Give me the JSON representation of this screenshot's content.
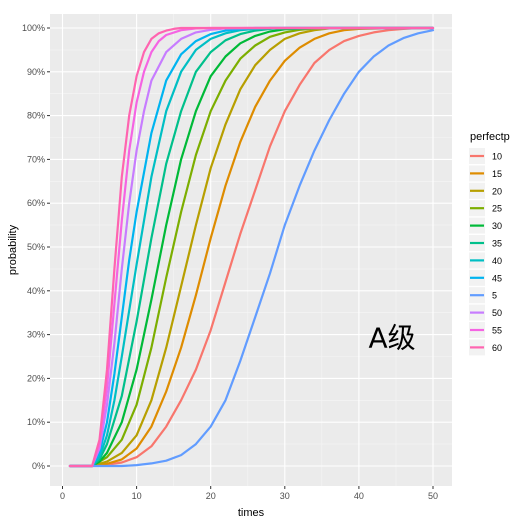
{
  "chart_data": {
    "type": "line",
    "title": "",
    "xlabel": "times",
    "ylabel": "probability",
    "xlim": [
      0,
      52
    ],
    "ylim": [
      0,
      1.0
    ],
    "x_ticks": [
      0,
      10,
      20,
      30,
      40,
      50
    ],
    "x_tick_labels": [
      "0",
      "10",
      "20",
      "30",
      "40",
      "50"
    ],
    "y_ticks": [
      0,
      0.1,
      0.2,
      0.3,
      0.4,
      0.5,
      0.6,
      0.7,
      0.8,
      0.9,
      1.0
    ],
    "y_tick_labels": [
      "0%",
      "10%",
      "20%",
      "30%",
      "40%",
      "50%",
      "60%",
      "70%",
      "80%",
      "90%",
      "100%"
    ],
    "grid": true,
    "legend": {
      "title": "perfectp",
      "position": "right"
    },
    "annotation": "A级",
    "series": [
      {
        "name": "10",
        "color": "#F8766D",
        "x": [
          1,
          4,
          6,
          8,
          10,
          12,
          14,
          16,
          18,
          20,
          22,
          24,
          26,
          28,
          30,
          32,
          34,
          36,
          38,
          40,
          42,
          44,
          46,
          48,
          50
        ],
        "y": [
          0,
          0,
          0.003,
          0.008,
          0.02,
          0.045,
          0.09,
          0.15,
          0.22,
          0.31,
          0.42,
          0.53,
          0.63,
          0.73,
          0.81,
          0.87,
          0.92,
          0.95,
          0.97,
          0.982,
          0.99,
          0.995,
          0.998,
          1.0,
          1.0
        ]
      },
      {
        "name": "15",
        "color": "#DE8C00",
        "x": [
          1,
          4,
          6,
          8,
          10,
          12,
          14,
          16,
          18,
          20,
          22,
          24,
          26,
          28,
          30,
          32,
          34,
          36,
          38,
          40,
          45,
          50
        ],
        "y": [
          0,
          0,
          0.005,
          0.015,
          0.04,
          0.09,
          0.17,
          0.27,
          0.39,
          0.52,
          0.64,
          0.74,
          0.82,
          0.88,
          0.925,
          0.955,
          0.975,
          0.988,
          0.995,
          0.998,
          1.0,
          1.0
        ]
      },
      {
        "name": "20",
        "color": "#B79F00",
        "x": [
          1,
          4,
          6,
          8,
          10,
          12,
          14,
          16,
          18,
          20,
          22,
          24,
          26,
          28,
          30,
          32,
          34,
          36,
          40,
          45,
          50
        ],
        "y": [
          0,
          0,
          0.01,
          0.03,
          0.07,
          0.15,
          0.27,
          0.41,
          0.55,
          0.68,
          0.78,
          0.86,
          0.915,
          0.95,
          0.975,
          0.988,
          0.995,
          0.999,
          1.0,
          1.0,
          1.0
        ]
      },
      {
        "name": "25",
        "color": "#7CAE00",
        "x": [
          1,
          4,
          6,
          8,
          10,
          12,
          14,
          16,
          18,
          20,
          22,
          24,
          26,
          28,
          30,
          32,
          35,
          40,
          50
        ],
        "y": [
          0,
          0,
          0.02,
          0.06,
          0.14,
          0.27,
          0.43,
          0.58,
          0.71,
          0.81,
          0.88,
          0.93,
          0.96,
          0.98,
          0.99,
          0.996,
          1.0,
          1.0,
          1.0
        ]
      },
      {
        "name": "30",
        "color": "#00BA38",
        "x": [
          1,
          4,
          5,
          6,
          8,
          10,
          12,
          14,
          16,
          18,
          20,
          22,
          24,
          26,
          28,
          30,
          35,
          40,
          50
        ],
        "y": [
          0,
          0,
          0.01,
          0.03,
          0.1,
          0.22,
          0.38,
          0.55,
          0.7,
          0.81,
          0.89,
          0.935,
          0.965,
          0.982,
          0.992,
          0.997,
          1.0,
          1.0,
          1.0
        ]
      },
      {
        "name": "35",
        "color": "#00C08B",
        "x": [
          1,
          4,
          5,
          6,
          8,
          10,
          12,
          14,
          16,
          18,
          20,
          22,
          24,
          26,
          28,
          30,
          35,
          40,
          50
        ],
        "y": [
          0,
          0,
          0.015,
          0.05,
          0.16,
          0.33,
          0.52,
          0.69,
          0.81,
          0.9,
          0.945,
          0.972,
          0.986,
          0.994,
          0.998,
          1.0,
          1.0,
          1.0,
          1.0
        ]
      },
      {
        "name": "40",
        "color": "#00BFC4",
        "x": [
          1,
          4,
          5,
          6,
          7,
          8,
          10,
          12,
          14,
          16,
          18,
          20,
          22,
          24,
          26,
          28,
          30,
          40,
          50
        ],
        "y": [
          0,
          0,
          0.02,
          0.07,
          0.15,
          0.25,
          0.46,
          0.66,
          0.81,
          0.9,
          0.95,
          0.975,
          0.988,
          0.995,
          0.998,
          1.0,
          1.0,
          1.0,
          1.0
        ]
      },
      {
        "name": "45",
        "color": "#00B4F0",
        "x": [
          1,
          4,
          5,
          6,
          7,
          8,
          9,
          10,
          12,
          14,
          16,
          18,
          20,
          22,
          24,
          26,
          30,
          40,
          50
        ],
        "y": [
          0,
          0,
          0.03,
          0.1,
          0.21,
          0.34,
          0.47,
          0.58,
          0.76,
          0.88,
          0.94,
          0.97,
          0.986,
          0.994,
          0.998,
          1.0,
          1.0,
          1.0,
          1.0
        ]
      },
      {
        "name": "5",
        "color": "#619CFF",
        "x": [
          1,
          8,
          10,
          12,
          14,
          16,
          18,
          20,
          22,
          24,
          26,
          28,
          30,
          32,
          34,
          36,
          38,
          40,
          42,
          44,
          46,
          48,
          50
        ],
        "y": [
          0,
          0,
          0.002,
          0.006,
          0.012,
          0.025,
          0.05,
          0.09,
          0.15,
          0.24,
          0.34,
          0.44,
          0.55,
          0.64,
          0.72,
          0.79,
          0.85,
          0.9,
          0.935,
          0.96,
          0.977,
          0.988,
          0.995
        ]
      },
      {
        "name": "50",
        "color": "#C77CFF",
        "x": [
          1,
          4,
          5,
          6,
          7,
          8,
          9,
          10,
          11,
          12,
          14,
          16,
          18,
          20,
          22,
          25,
          30,
          40,
          50
        ],
        "y": [
          0,
          0,
          0.04,
          0.14,
          0.28,
          0.45,
          0.6,
          0.72,
          0.81,
          0.88,
          0.945,
          0.975,
          0.99,
          0.996,
          0.999,
          1.0,
          1.0,
          1.0,
          1.0
        ]
      },
      {
        "name": "55",
        "color": "#F564E3",
        "x": [
          1,
          4,
          5,
          6,
          7,
          8,
          9,
          10,
          11,
          12,
          13,
          14,
          16,
          18,
          20,
          25,
          30,
          40,
          50
        ],
        "y": [
          0,
          0,
          0.05,
          0.18,
          0.37,
          0.56,
          0.72,
          0.83,
          0.9,
          0.945,
          0.97,
          0.984,
          0.995,
          0.999,
          1.0,
          1.0,
          1.0,
          1.0,
          1.0
        ]
      },
      {
        "name": "60",
        "color": "#FF64B0",
        "x": [
          1,
          4,
          5,
          6,
          7,
          8,
          9,
          10,
          11,
          12,
          13,
          14,
          15,
          16,
          18,
          20,
          30,
          40,
          50
        ],
        "y": [
          0,
          0,
          0.06,
          0.22,
          0.45,
          0.66,
          0.8,
          0.89,
          0.945,
          0.975,
          0.988,
          0.994,
          0.998,
          1.0,
          1.0,
          1.0,
          1.0,
          1.0,
          1.0
        ]
      }
    ]
  }
}
